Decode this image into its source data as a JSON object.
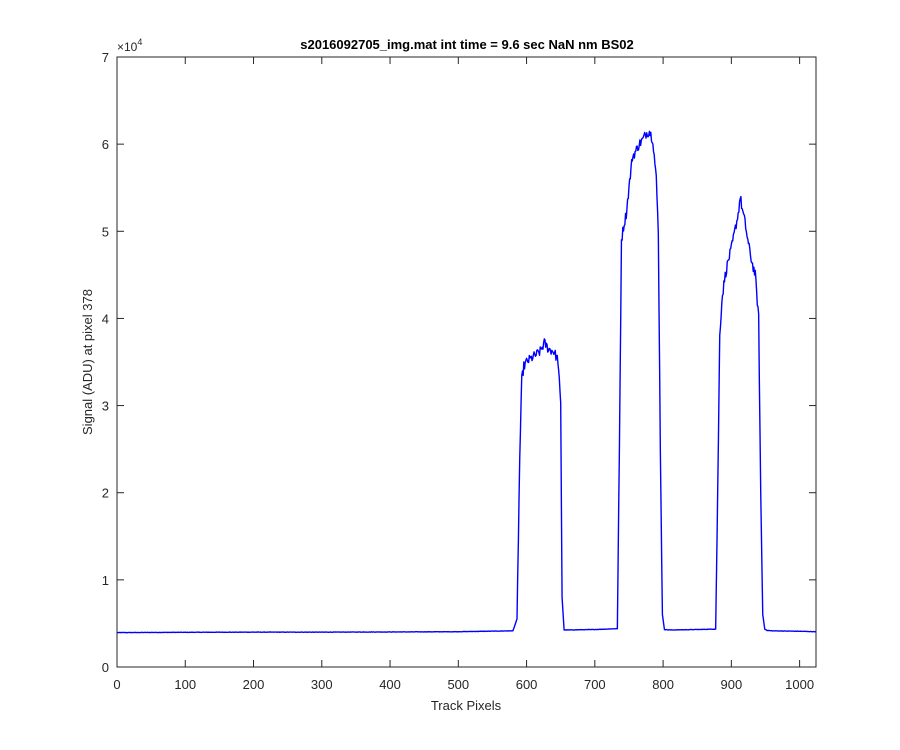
{
  "chart_data": {
    "type": "line",
    "title": "s2016092705_img.mat int time = 9.6 sec  NaN nm BS02",
    "xlabel": "Track Pixels",
    "ylabel": "Signal (ADU) at pixel 378",
    "xlim": [
      0,
      1024
    ],
    "ylim": [
      0,
      70000
    ],
    "y_exponent_label": "×10",
    "y_exponent_power": "4",
    "x_ticks": [
      0,
      100,
      200,
      300,
      400,
      500,
      600,
      700,
      800,
      900,
      1000
    ],
    "x_tick_labels": [
      "0",
      "100",
      "200",
      "300",
      "400",
      "500",
      "600",
      "700",
      "800",
      "900",
      "1000"
    ],
    "y_ticks": [
      0,
      10000,
      20000,
      30000,
      40000,
      50000,
      60000,
      70000
    ],
    "y_tick_labels": [
      "0",
      "1",
      "2",
      "3",
      "4",
      "5",
      "6",
      "7"
    ],
    "grid": false,
    "series": [
      {
        "color": "#0000ff",
        "x": [
          0,
          100,
          200,
          300,
          400,
          500,
          580,
          586,
          590,
          593,
          596,
          600,
          610,
          620,
          626,
          632,
          640,
          646,
          650,
          652,
          655,
          660,
          700,
          733,
          736,
          739,
          742,
          746,
          750,
          755,
          760,
          765,
          770,
          775,
          780,
          785,
          790,
          793,
          796,
          799,
          802,
          810,
          850,
          877,
          880,
          883,
          886,
          890,
          895,
          900,
          905,
          910,
          913,
          916,
          920,
          925,
          930,
          935,
          940,
          943,
          946,
          949,
          952,
          960,
          1000,
          1024
        ],
        "y": [
          3950,
          3980,
          4000,
          4000,
          4020,
          4050,
          4150,
          5500,
          24000,
          33000,
          34500,
          35000,
          35600,
          36200,
          37200,
          36500,
          36200,
          35200,
          30000,
          8000,
          4250,
          4250,
          4300,
          4400,
          25000,
          49000,
          50500,
          52000,
          55000,
          58500,
          59200,
          60000,
          60500,
          61200,
          61500,
          60500,
          56000,
          50000,
          25000,
          6000,
          4300,
          4250,
          4300,
          4350,
          20000,
          38000,
          42000,
          44500,
          46500,
          48000,
          50000,
          52000,
          54000,
          52500,
          51000,
          48500,
          46500,
          45000,
          40000,
          20000,
          6000,
          4350,
          4200,
          4150,
          4100,
          4050
        ]
      }
    ]
  }
}
